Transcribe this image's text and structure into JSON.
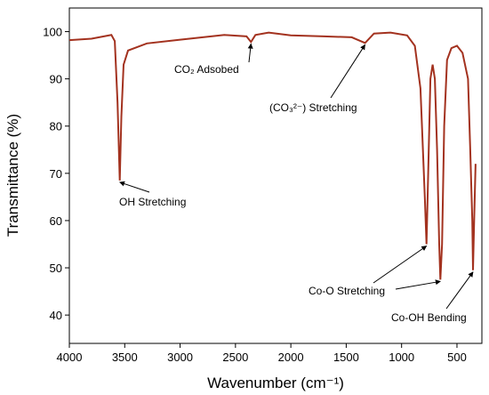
{
  "chart_data": {
    "type": "line",
    "x_label": "Wavenumber (cm⁻¹)",
    "y_label": "Transmittance (%)",
    "xlim": [
      4000,
      275
    ],
    "xticks": [
      4000,
      3500,
      3000,
      2500,
      2000,
      1500,
      1000,
      500
    ],
    "ylim": [
      34,
      105
    ],
    "yticks": [
      40,
      50,
      60,
      70,
      80,
      90,
      100
    ],
    "x": [
      4000,
      3800,
      3620,
      3590,
      3565,
      3545,
      3530,
      3510,
      3470,
      3300,
      3000,
      2600,
      2400,
      2360,
      2320,
      2200,
      2000,
      1700,
      1450,
      1330,
      1250,
      1100,
      950,
      880,
      830,
      790,
      775,
      760,
      740,
      720,
      700,
      680,
      660,
      650,
      635,
      615,
      590,
      550,
      500,
      450,
      400,
      380,
      362,
      355,
      345,
      332
    ],
    "series": [
      {
        "color": "#a3321f",
        "values": [
          98.2,
          98.5,
          99.3,
          98,
          85,
          68.5,
          82,
          93,
          96,
          97.5,
          98.3,
          99.3,
          99,
          97.8,
          99.3,
          99.8,
          99.2,
          99,
          98.8,
          97.6,
          99.6,
          99.8,
          99.2,
          97,
          88,
          65,
          55,
          70,
          90,
          93,
          90,
          75,
          55,
          47.5,
          55,
          80,
          94,
          96.5,
          97,
          95.5,
          90,
          75,
          60,
          49.5,
          60,
          72
        ]
      }
    ],
    "annotations": [
      {
        "text": "OH Stretching",
        "points": [
          [
            3545,
            68.5
          ]
        ]
      },
      {
        "text": "CO₂ Adsobed",
        "points": [
          [
            2360,
            97.8
          ]
        ]
      },
      {
        "text": "(CO₃²⁻) Stretching",
        "points": [
          [
            1330,
            97.6
          ]
        ]
      },
      {
        "text": "Co-O Stretching",
        "points": [
          [
            775,
            55
          ],
          [
            650,
            47.5
          ]
        ]
      },
      {
        "text": "Co-OH Bending",
        "points": [
          [
            355,
            49.5
          ]
        ]
      }
    ]
  }
}
